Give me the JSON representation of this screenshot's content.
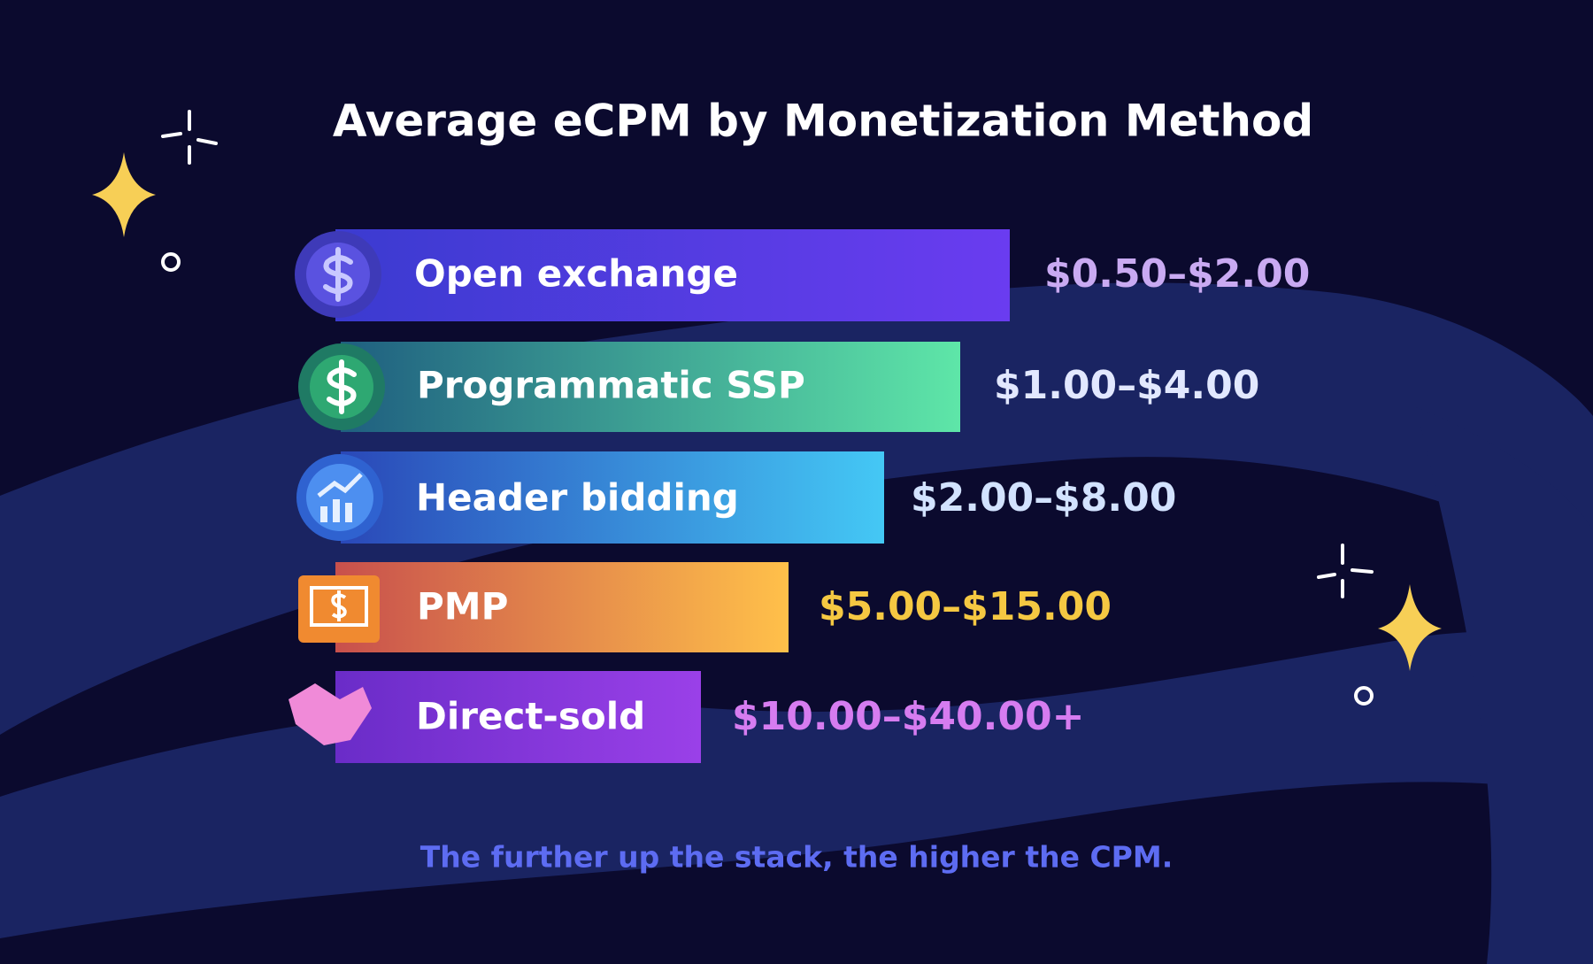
{
  "title": "Average eCPM by Monetization Method",
  "items": [
    {
      "label": "Open exchange",
      "value": "$0.50–$2.00"
    },
    {
      "label": "Programmatic SSP",
      "value": "$1.00–$4.00"
    },
    {
      "label": "Header bidding",
      "value": "$2.00–$8.00"
    },
    {
      "label": "PMP",
      "value": "$5.00–$15.00"
    },
    {
      "label": "Direct-sold",
      "value": "$10.00–$40.00+"
    }
  ],
  "footnote": "The further up the stack, the higher the CPM."
}
